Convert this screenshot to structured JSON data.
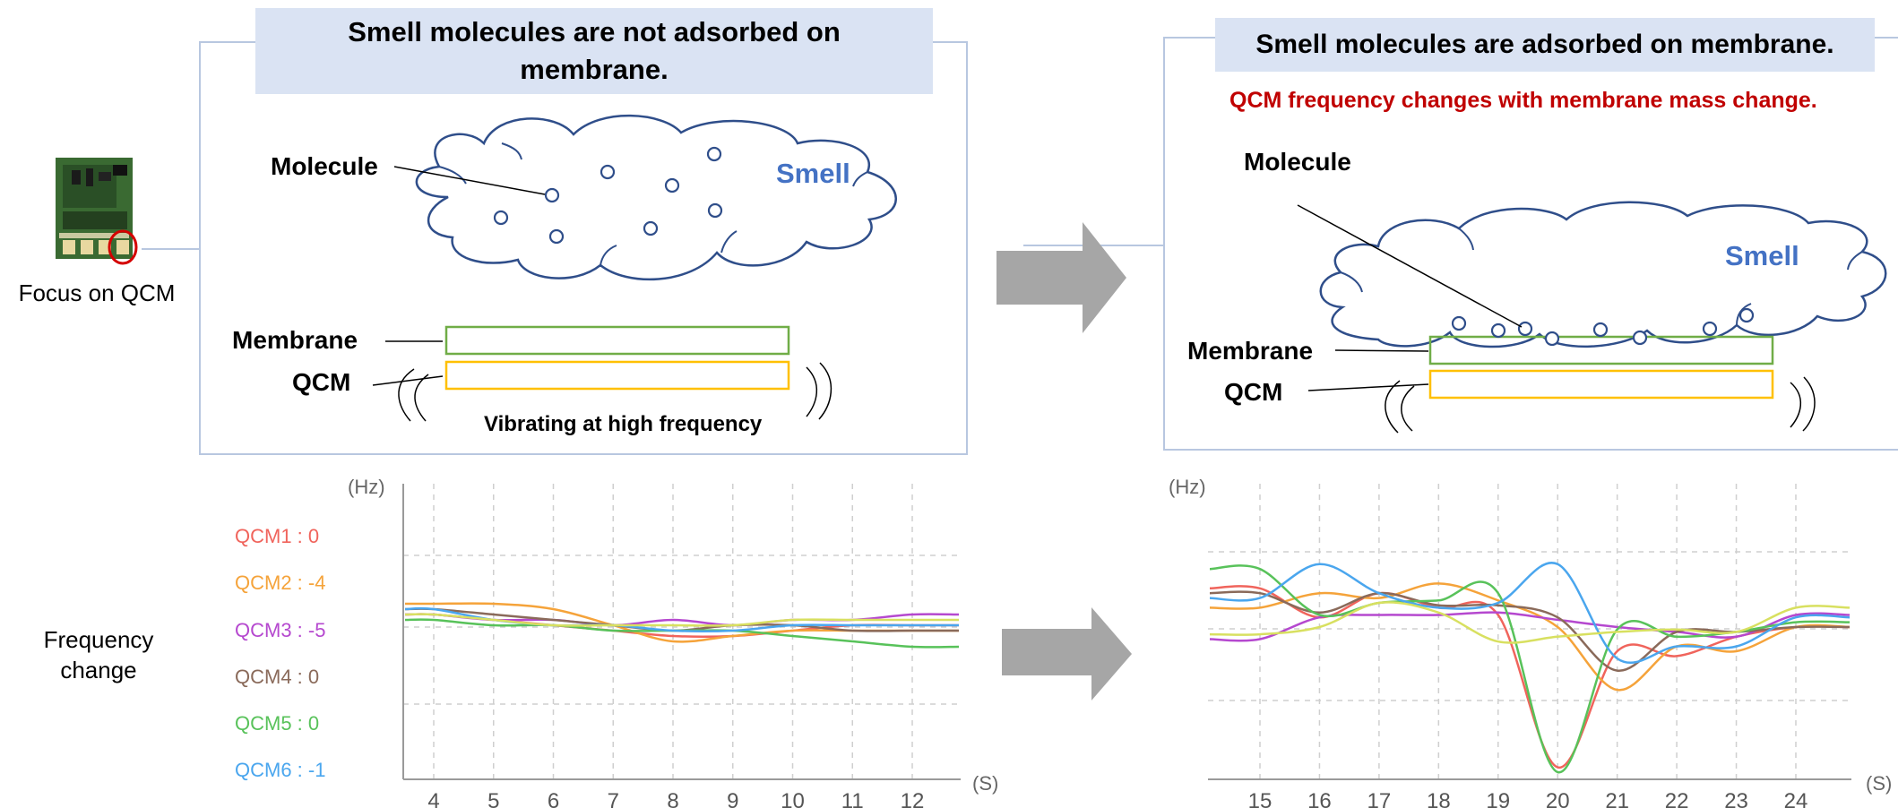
{
  "left_panel": {
    "title": "Smell molecules are not adsorbed on membrane.",
    "molecule_label": "Molecule",
    "smell_label": "Smell",
    "membrane_label": "Membrane",
    "qcm_label": "QCM",
    "vibration_caption": "Vibrating at high frequency"
  },
  "right_panel": {
    "title": "Smell molecules are adsorbed on membrane.",
    "subtitle": "QCM frequency changes with membrane mass change.",
    "molecule_label": "Molecule",
    "smell_label": "Smell",
    "membrane_label": "Membrane",
    "qcm_label": "QCM"
  },
  "device": {
    "caption": "Focus on QCM"
  },
  "row_label": "Frequency change",
  "legend": [
    {
      "text": "QCM1 : 0",
      "color": "#f0645c"
    },
    {
      "text": "QCM2 : -4",
      "color": "#f5a33a"
    },
    {
      "text": "QCM3 : -5",
      "color": "#b548cf"
    },
    {
      "text": "QCM4 : 0",
      "color": "#8a6a5a"
    },
    {
      "text": "QCM5 : 0",
      "color": "#58c25a"
    },
    {
      "text": "QCM6 : -1",
      "color": "#4aa6ee"
    }
  ],
  "colors": {
    "qcm7": "#d8e060",
    "membrane": "#70ad47",
    "qcm": "#ffc000",
    "arrow": "#a6a6a6",
    "smell": "#4472c4",
    "outline": "#2f4e8a"
  },
  "chart_data": [
    {
      "type": "line",
      "xlabel": "(S)",
      "ylabel": "(Hz)",
      "x": [
        4,
        5,
        6,
        7,
        8,
        9,
        10,
        11,
        12
      ],
      "series": [
        {
          "values": [
            -1,
            -2,
            -3,
            -4,
            -5,
            -5,
            -4,
            -3,
            -3
          ]
        },
        {
          "values": [
            1,
            1,
            0,
            -3,
            -6,
            -5,
            -4,
            -4,
            -4
          ]
        },
        {
          "values": [
            -1,
            -2,
            -2,
            -3,
            -2,
            -3,
            -2,
            -2,
            -1
          ]
        },
        {
          "values": [
            0,
            -1,
            -2,
            -3,
            -4,
            -3,
            -3,
            -4,
            -4
          ]
        },
        {
          "values": [
            -2,
            -3,
            -3,
            -4,
            -4,
            -4,
            -5,
            -6,
            -7
          ]
        },
        {
          "values": [
            0,
            -2,
            -3,
            -3,
            -4,
            -4,
            -3,
            -3,
            -3
          ]
        },
        {
          "values": [
            -1,
            -2,
            -3,
            -3,
            -3,
            -3,
            -2,
            -2,
            -2
          ]
        }
      ]
    },
    {
      "type": "line",
      "xlabel": "(S)",
      "ylabel": "(Hz)",
      "x": [
        15,
        16,
        17,
        18,
        19,
        20,
        21,
        22,
        23,
        24
      ],
      "series": [
        {
          "values": [
            16,
            4,
            14,
            8,
            5,
            -58,
            -10,
            -12,
            -4,
            0
          ]
        },
        {
          "values": [
            8,
            14,
            12,
            18,
            11,
            0,
            -26,
            -8,
            -10,
            0
          ]
        },
        {
          "values": [
            -5,
            4,
            5,
            5,
            6,
            3,
            0,
            -2,
            -4,
            5
          ]
        },
        {
          "values": [
            14,
            6,
            14,
            9,
            9,
            4,
            -18,
            -2,
            -2,
            0
          ]
        },
        {
          "values": [
            24,
            5,
            10,
            11,
            14,
            -60,
            -1,
            -4,
            -2,
            2
          ]
        },
        {
          "values": [
            12,
            26,
            14,
            8,
            10,
            26,
            -13,
            -8,
            -8,
            4
          ]
        },
        {
          "values": [
            -3,
            0,
            10,
            6,
            -6,
            -4,
            -2,
            -1,
            -2,
            8
          ]
        }
      ]
    }
  ],
  "arrows": [
    "right-arrow-top",
    "right-arrow-bottom"
  ]
}
